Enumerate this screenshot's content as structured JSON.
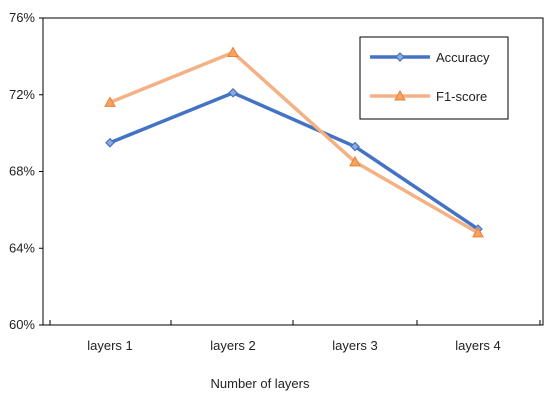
{
  "chart_data": {
    "type": "line",
    "categories": [
      "layers 1",
      "layers 2",
      "layers 3",
      "layers 4"
    ],
    "series": [
      {
        "name": "Accuracy",
        "values": [
          69.5,
          72.1,
          69.3,
          65.0
        ],
        "color": "#4472C4",
        "marker": "diamond"
      },
      {
        "name": "F1-score",
        "values": [
          71.6,
          74.2,
          68.5,
          64.8
        ],
        "color": "#F4B183",
        "marker": "triangle"
      }
    ],
    "xlabel": "Number of layers",
    "ylabel": "",
    "ylim": [
      60,
      76
    ],
    "yticks": [
      60,
      64,
      68,
      72,
      76
    ],
    "yticks_labels": [
      "60%",
      "64%",
      "68%",
      "72%",
      "76%"
    ],
    "grid": false,
    "legend_position": "top-right"
  }
}
